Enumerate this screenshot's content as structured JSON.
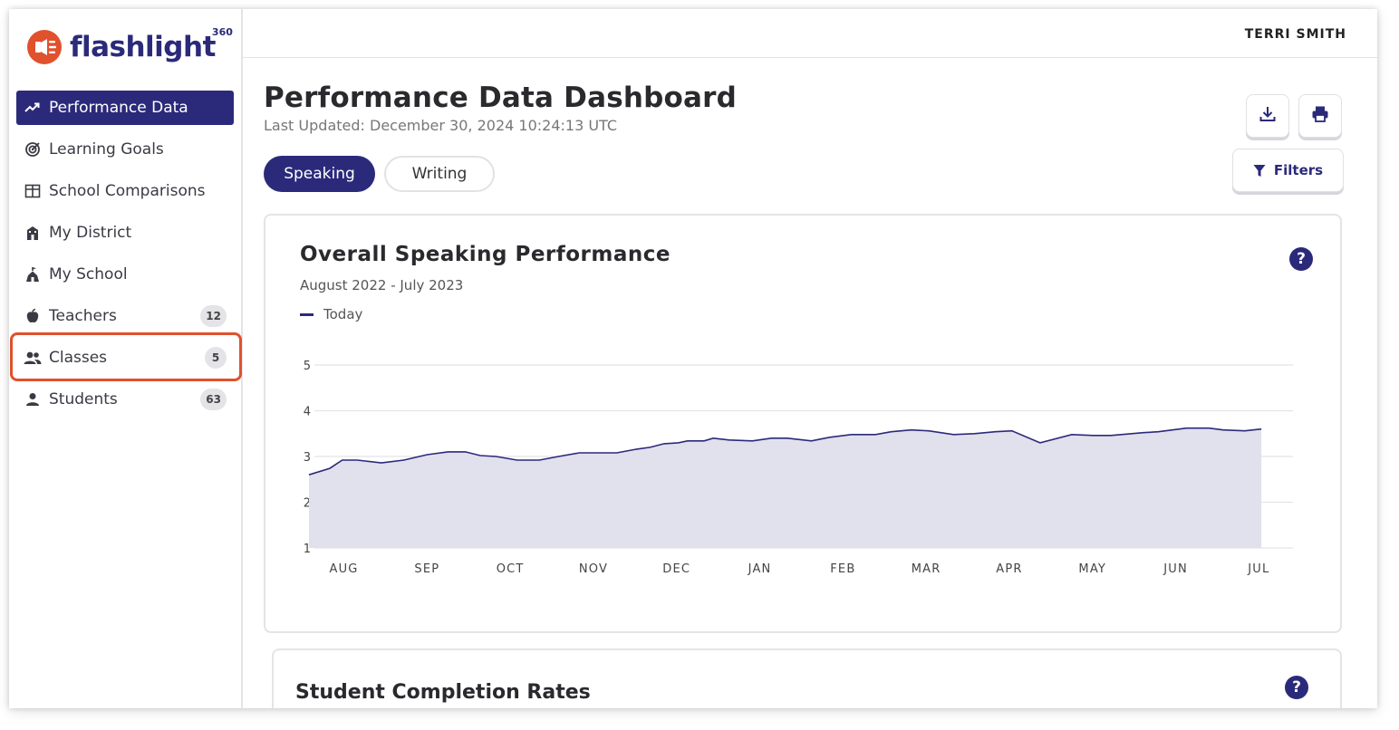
{
  "app": {
    "logo_text": "flashlight",
    "logo_superscript": "360"
  },
  "header": {
    "user_name": "TERRI SMITH"
  },
  "sidebar": {
    "items": [
      {
        "label": "Performance Data",
        "icon": "trending-up-icon",
        "active": true
      },
      {
        "label": "Learning Goals",
        "icon": "target-icon"
      },
      {
        "label": "School Comparisons",
        "icon": "table-grid-icon"
      },
      {
        "label": "My District",
        "icon": "district-building-icon"
      },
      {
        "label": "My School",
        "icon": "school-icon"
      },
      {
        "label": "Teachers",
        "icon": "apple-icon",
        "count": "12"
      },
      {
        "label": "Classes",
        "icon": "users-group-icon",
        "count": "5"
      },
      {
        "label": "Students",
        "icon": "user-icon",
        "count": "63"
      }
    ]
  },
  "main": {
    "title": "Performance Data Dashboard",
    "last_updated": "Last Updated: December 30, 2024 10:24:13 UTC",
    "tabs": [
      {
        "label": "Speaking"
      },
      {
        "label": "Writing"
      }
    ],
    "filters_label": "Filters",
    "help_glyph": "?"
  },
  "cards": {
    "speaking": {
      "title": "Overall Speaking Performance",
      "subtitle": "August 2022 - July 2023",
      "legend": "Today"
    },
    "completion": {
      "title": "Student Completion Rates"
    }
  },
  "colors": {
    "brand_navy": "#2b2a7a",
    "brand_orange": "#e0512d",
    "area_fill": "#e1e0ed",
    "grid": "#e4e4e8"
  },
  "chart_data": {
    "type": "area",
    "title": "Overall Speaking Performance",
    "subtitle": "August 2022 - July 2023",
    "xlabel": "",
    "ylabel": "",
    "ylim": [
      1,
      5
    ],
    "y_ticks": [
      "1",
      "2",
      "3",
      "4",
      "5"
    ],
    "x_ticks": [
      "AUG",
      "SEP",
      "OCT",
      "NOV",
      "DEC",
      "JAN",
      "FEB",
      "MAR",
      "APR",
      "MAY",
      "JUN",
      "JUL"
    ],
    "grid": true,
    "legend_position": "top-left",
    "series": [
      {
        "name": "Today",
        "x": [
          0.0,
          0.25,
          0.4,
          0.58,
          0.87,
          1.14,
          1.42,
          1.67,
          1.88,
          2.06,
          2.25,
          2.5,
          2.77,
          3.0,
          3.25,
          3.48,
          3.7,
          3.94,
          4.1,
          4.27,
          4.44,
          4.55,
          4.75,
          4.86,
          5.05,
          5.33,
          5.56,
          5.75,
          6.04,
          6.26,
          6.52,
          6.81,
          7.0,
          7.24,
          7.45,
          7.75,
          8.0,
          8.25,
          8.45,
          8.79,
          9.17,
          9.43,
          9.64,
          10.03,
          10.21,
          10.55,
          10.82,
          10.99,
          11.25,
          11.45
        ],
        "values": [
          2.6,
          2.74,
          2.92,
          2.92,
          2.86,
          2.92,
          3.04,
          3.1,
          3.1,
          3.02,
          3.0,
          2.92,
          2.92,
          3.0,
          3.08,
          3.08,
          3.08,
          3.16,
          3.2,
          3.28,
          3.3,
          3.34,
          3.34,
          3.4,
          3.36,
          3.34,
          3.4,
          3.4,
          3.34,
          3.42,
          3.48,
          3.48,
          3.54,
          3.58,
          3.56,
          3.48,
          3.5,
          3.54,
          3.56,
          3.3,
          3.48,
          3.46,
          3.46,
          3.52,
          3.54,
          3.62,
          3.62,
          3.58,
          3.56,
          3.6
        ]
      }
    ]
  }
}
